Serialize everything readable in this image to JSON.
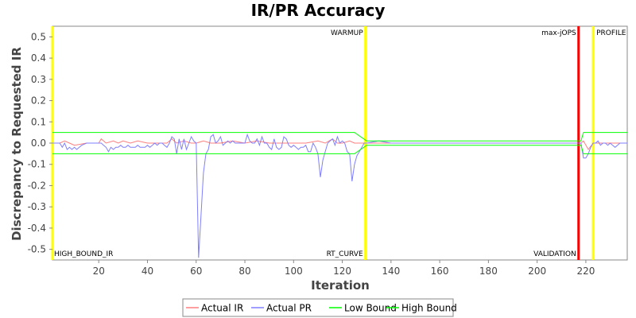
{
  "chart_data": {
    "type": "line",
    "title": "IR/PR Accuracy",
    "xlabel": "Iteration",
    "ylabel": "Discrepancy to Requested IR",
    "xlim": [
      1,
      237
    ],
    "ylim": [
      -0.55,
      0.55
    ],
    "x_ticks": [
      20,
      40,
      60,
      80,
      100,
      120,
      140,
      160,
      180,
      200,
      220
    ],
    "y_ticks": [
      0.5,
      0.4,
      0.3,
      0.2,
      0.1,
      0.0,
      -0.1,
      -0.2,
      -0.3,
      -0.4,
      -0.5
    ],
    "y_tick_labels": [
      "0.5",
      "0.4",
      "0.3",
      "0.2",
      "0.1",
      "0.0",
      "-0.1",
      "-0.2",
      "-0.3",
      "-0.4",
      "-0.5"
    ],
    "grid": false,
    "legend_position": "bottom",
    "markers": [
      {
        "label": "WARMUP",
        "x": 129.5,
        "color": "#ffff00",
        "label_pos": "top"
      },
      {
        "label": "RT_CURVE",
        "x": 129.5,
        "color": "#ffff00",
        "label_pos": "bottom"
      },
      {
        "label": "max-jOPS",
        "x": 217,
        "color": "#ff0000",
        "label_pos": "top"
      },
      {
        "label": "VALIDATION",
        "x": 217,
        "color": "#ff0000",
        "label_pos": "bottom"
      },
      {
        "label": "PROFILE",
        "x": 223,
        "color": "#ffff00",
        "label_pos": "top"
      },
      {
        "label": "HIGH_BOUND_IR",
        "x": 1,
        "color": "#ffff00",
        "label_pos": "bottom-left"
      }
    ],
    "series": [
      {
        "name": "Actual IR",
        "color": "#ff7f7f",
        "x": [
          1,
          4,
          6,
          8,
          10,
          15,
          20,
          21,
          23,
          26,
          28,
          30,
          33,
          36,
          40,
          45,
          48,
          50,
          52,
          55,
          58,
          60,
          63,
          66,
          70,
          75,
          80,
          85,
          90,
          95,
          100,
          105,
          110,
          113,
          116,
          118,
          120,
          123,
          125,
          128,
          130,
          135,
          140,
          150,
          160,
          170,
          180,
          190,
          200,
          210,
          216,
          218,
          219,
          221,
          223,
          225,
          228,
          230,
          233,
          235,
          237
        ],
        "y": [
          0.0,
          0.0,
          0.01,
          0.0,
          -0.01,
          0.0,
          0.0,
          0.02,
          0.0,
          0.01,
          0.0,
          0.01,
          0.0,
          0.01,
          0.0,
          0.0,
          0.0,
          0.02,
          0.0,
          0.01,
          0.0,
          0.0,
          0.01,
          0.0,
          0.0,
          0.01,
          0.0,
          0.01,
          0.0,
          0.0,
          0.0,
          0.0,
          0.01,
          0.0,
          0.02,
          0.0,
          0.0,
          0.01,
          0.0,
          0.0,
          0.0,
          0.0,
          0.0,
          0.0,
          0.0,
          0.0,
          0.0,
          0.0,
          0.0,
          0.0,
          0.0,
          0.0,
          0.01,
          -0.03,
          0.0,
          0.0,
          0.0,
          0.0,
          0.0,
          0.0,
          0.0
        ]
      },
      {
        "name": "Actual PR",
        "color": "#7f7fff",
        "x": [
          1,
          4,
          5,
          6,
          7,
          8,
          9,
          10,
          11,
          12,
          13,
          15,
          17,
          19,
          21,
          22,
          23,
          24,
          25,
          26,
          27,
          28,
          29,
          30,
          31,
          32,
          33,
          34,
          35,
          36,
          37,
          38,
          39,
          40,
          41,
          42,
          43,
          44,
          45,
          46,
          47,
          48,
          49,
          50,
          51,
          52,
          53,
          54,
          55,
          56,
          57,
          58,
          59,
          60,
          61,
          63,
          64,
          65,
          66,
          67,
          68,
          69,
          70,
          71,
          72,
          73,
          74,
          75,
          76,
          77,
          78,
          79,
          80,
          81,
          82,
          83,
          84,
          85,
          86,
          87,
          88,
          89,
          90,
          91,
          92,
          93,
          94,
          95,
          96,
          97,
          98,
          99,
          100,
          101,
          102,
          103,
          104,
          105,
          106,
          107,
          108,
          109,
          110,
          111,
          112,
          113,
          114,
          115,
          116,
          117,
          118,
          119,
          120,
          121,
          122,
          123,
          124,
          125,
          126,
          127,
          128,
          129,
          130,
          135,
          140,
          145,
          150,
          160,
          170,
          180,
          190,
          200,
          210,
          215,
          216,
          217,
          218,
          219,
          220,
          221,
          222,
          223,
          224,
          225,
          226,
          227,
          228,
          229,
          230,
          231,
          232,
          233,
          234,
          235,
          236,
          237
        ],
        "y": [
          0.0,
          0.0,
          -0.02,
          0.0,
          -0.03,
          -0.02,
          -0.03,
          -0.02,
          -0.03,
          -0.02,
          -0.01,
          0.0,
          0.0,
          0.0,
          0.0,
          -0.01,
          -0.02,
          -0.04,
          -0.02,
          -0.03,
          -0.02,
          -0.02,
          -0.01,
          -0.02,
          -0.02,
          -0.01,
          -0.02,
          -0.02,
          -0.02,
          -0.01,
          -0.02,
          -0.02,
          -0.02,
          -0.01,
          -0.02,
          -0.01,
          0.0,
          -0.01,
          0.0,
          0.0,
          -0.01,
          -0.02,
          0.0,
          0.03,
          0.02,
          -0.05,
          0.02,
          -0.03,
          0.02,
          -0.03,
          0.0,
          0.03,
          0.01,
          0.0,
          -0.54,
          -0.14,
          -0.05,
          -0.03,
          0.03,
          0.04,
          0.0,
          0.01,
          0.03,
          -0.01,
          0.0,
          0.01,
          0.0,
          0.01,
          0.0,
          0.0,
          0.0,
          0.0,
          0.0,
          0.04,
          0.01,
          0.0,
          0.0,
          0.02,
          -0.01,
          0.03,
          0.0,
          0.0,
          -0.02,
          -0.03,
          0.02,
          -0.02,
          -0.03,
          -0.02,
          0.03,
          0.02,
          -0.01,
          -0.02,
          -0.01,
          -0.02,
          -0.03,
          -0.02,
          -0.02,
          -0.01,
          -0.04,
          -0.04,
          0.0,
          -0.02,
          -0.05,
          -0.16,
          -0.08,
          -0.04,
          0.0,
          0.01,
          0.02,
          -0.01,
          0.03,
          0.0,
          0.01,
          0.0,
          -0.04,
          -0.05,
          -0.18,
          -0.1,
          -0.06,
          -0.04,
          -0.02,
          0.0,
          0.0,
          0.01,
          0.0,
          0.0,
          0.0,
          0.0,
          0.0,
          0.0,
          0.0,
          0.0,
          0.0,
          0.0,
          0.0,
          0.0,
          0.0,
          -0.07,
          -0.07,
          -0.05,
          -0.02,
          0.0,
          0.0,
          0.01,
          -0.01,
          0.0,
          0.0,
          -0.01,
          0.0,
          -0.01,
          -0.02,
          -0.01,
          0.0,
          0.0,
          0.0,
          0.0
        ]
      },
      {
        "name": "Low Bound",
        "color": "#00ff00",
        "x": [
          1,
          125,
          130,
          216,
          218,
          219,
          223,
          237
        ],
        "y": [
          -0.05,
          -0.05,
          -0.01,
          -0.01,
          -0.01,
          -0.05,
          -0.05,
          -0.05
        ]
      },
      {
        "name": "High Bound",
        "color": "#00ff00",
        "x": [
          1,
          125,
          130,
          216,
          218,
          219,
          223,
          237
        ],
        "y": [
          0.05,
          0.05,
          0.01,
          0.01,
          0.01,
          0.05,
          0.05,
          0.05
        ]
      }
    ]
  }
}
